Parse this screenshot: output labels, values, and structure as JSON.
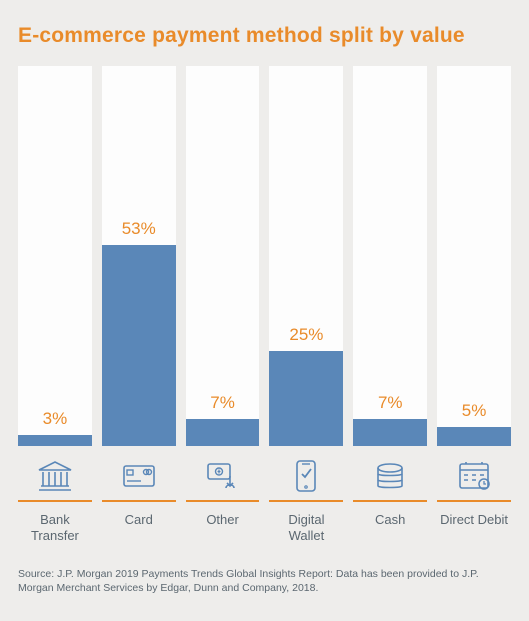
{
  "title": "E-commerce payment method split by value",
  "chart": {
    "type": "bar",
    "ylim": [
      0,
      100
    ],
    "background_color": "#eeedeb",
    "track_color": "#fdfdfd",
    "bar_color": "#5a87b8",
    "value_label_color": "#e98b2a",
    "value_label_fontsize": 17,
    "category_label_color": "#5b6770",
    "category_label_fontsize": 13,
    "icon_stroke": "#5a87b8",
    "underline_color": "#e98b2a",
    "title_color": "#e98b2a",
    "title_fontsize": 21,
    "bars": [
      {
        "category": "Bank Transfer",
        "value": 3,
        "value_label": "3%",
        "icon": "bank-icon"
      },
      {
        "category": "Card",
        "value": 53,
        "value_label": "53%",
        "icon": "card-icon"
      },
      {
        "category": "Other",
        "value": 7,
        "value_label": "7%",
        "icon": "other-icon"
      },
      {
        "category": "Digital Wallet",
        "value": 25,
        "value_label": "25%",
        "icon": "wallet-icon"
      },
      {
        "category": "Cash",
        "value": 7,
        "value_label": "7%",
        "icon": "cash-icon"
      },
      {
        "category": "Direct Debit",
        "value": 5,
        "value_label": "5%",
        "icon": "debit-icon"
      }
    ]
  },
  "source": "Source: J.P. Morgan 2019 Payments Trends Global Insights Report: Data has been provided to J.P. Morgan Merchant Services by Edgar, Dunn and Company, 2018."
}
